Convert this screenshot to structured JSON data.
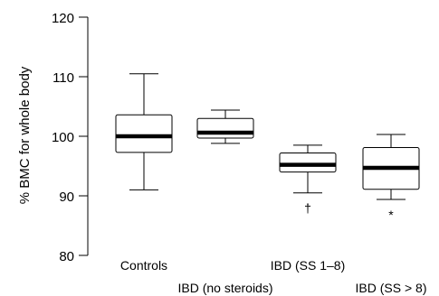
{
  "chart_data": {
    "type": "boxplot",
    "ylabel": "% BMC for whole body",
    "ylim": [
      80,
      120
    ],
    "yticks": [
      80,
      90,
      100,
      110,
      120
    ],
    "grid": false,
    "legend": "none",
    "categories": [
      "Controls",
      "IBD (no steroids)",
      "IBD (SS 1–8)",
      "IBD (SS > 8)"
    ],
    "label_row": [
      "top",
      "bottom",
      "top",
      "bottom"
    ],
    "boxes": [
      {
        "whisker_low": 91.0,
        "q1": 97.3,
        "median": 100.0,
        "q3": 103.6,
        "whisker_high": 110.5,
        "marker": ""
      },
      {
        "whisker_low": 98.8,
        "q1": 99.7,
        "median": 100.6,
        "q3": 103.0,
        "whisker_high": 104.4,
        "marker": ""
      },
      {
        "whisker_low": 90.5,
        "q1": 94.0,
        "median": 95.2,
        "q3": 97.2,
        "whisker_high": 98.5,
        "marker": "†"
      },
      {
        "whisker_low": 89.4,
        "q1": 91.1,
        "median": 94.7,
        "q3": 98.1,
        "whisker_high": 100.3,
        "marker": "*"
      }
    ],
    "colors": {
      "stroke": "#000000",
      "box_fill": "#ffffff",
      "median": "#000000"
    }
  }
}
